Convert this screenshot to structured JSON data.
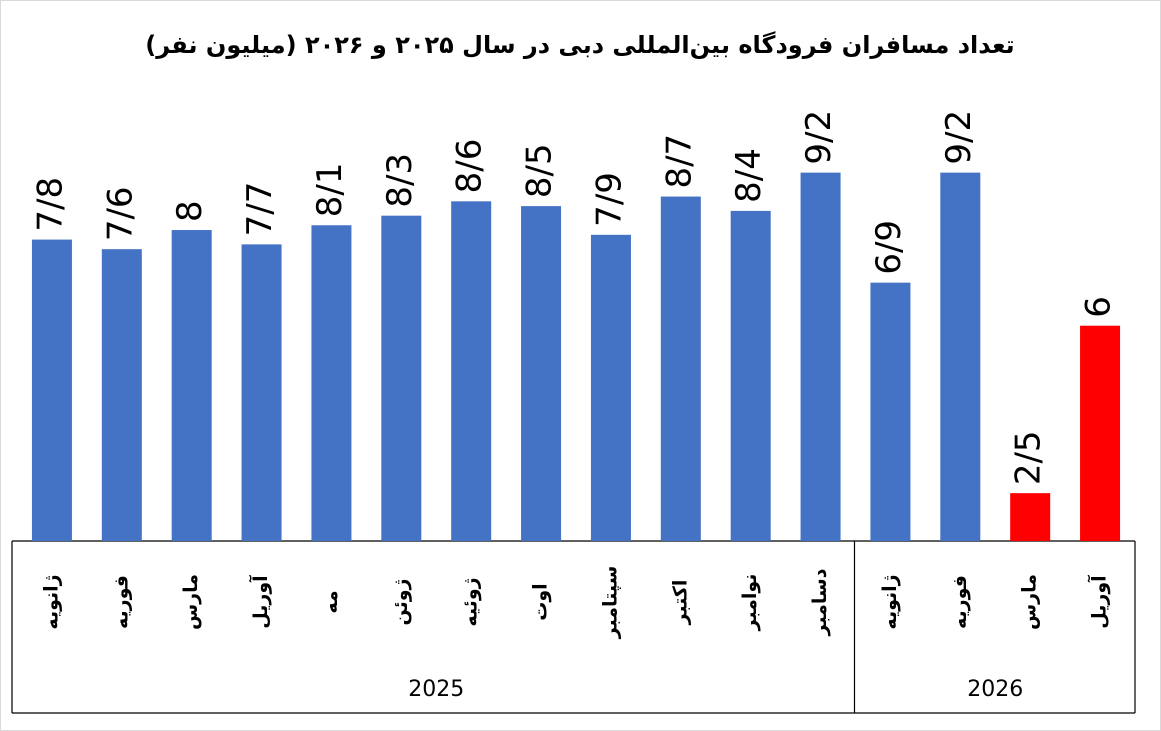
{
  "chart_data": {
    "type": "bar",
    "title": "تعداد مسافران فرودگاه بین‌المللی دبی در سال ۲۰۲۵ و ۲۰۲۶ (میلیون نفر)",
    "ylim": [
      1.5,
      10.3
    ],
    "groups": [
      {
        "name": "2025",
        "categories": [
          "ژانویه",
          "فوریه",
          "مارس",
          "آوریل",
          "مه",
          "ژوئن",
          "ژوئیه",
          "اوت",
          "سپتامبر",
          "اکتبر",
          "نوامبر",
          "دسامبر"
        ],
        "values": [
          7.8,
          7.6,
          8,
          7.7,
          8.1,
          8.3,
          8.6,
          8.5,
          7.9,
          8.7,
          8.4,
          9.2
        ],
        "value_labels": [
          "7/8",
          "7/6",
          "8",
          "7/7",
          "8/1",
          "8/3",
          "8/6",
          "8/5",
          "7/9",
          "8/7",
          "8/4",
          "9/2"
        ],
        "colors": [
          "#4472c4",
          "#4472c4",
          "#4472c4",
          "#4472c4",
          "#4472c4",
          "#4472c4",
          "#4472c4",
          "#4472c4",
          "#4472c4",
          "#4472c4",
          "#4472c4",
          "#4472c4"
        ]
      },
      {
        "name": "2026",
        "categories": [
          "ژانویه",
          "فوریه",
          "مارس",
          "آوریل"
        ],
        "values": [
          6.9,
          9.2,
          2.5,
          6
        ],
        "value_labels": [
          "6/9",
          "9/2",
          "2/5",
          "6"
        ],
        "colors": [
          "#4472c4",
          "#4472c4",
          "#ff0000",
          "#ff0000"
        ]
      }
    ]
  }
}
